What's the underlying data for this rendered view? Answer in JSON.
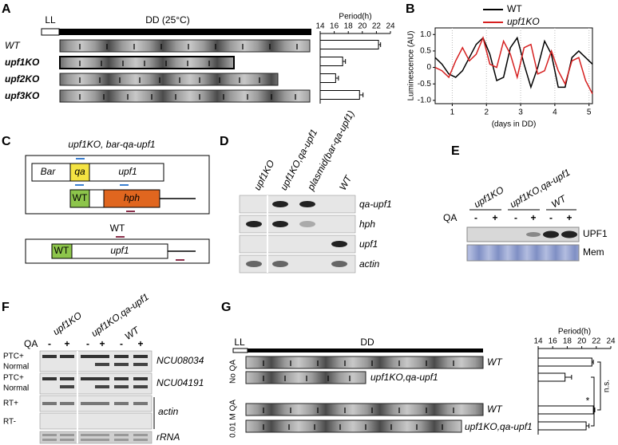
{
  "panel_labels": [
    "A",
    "B",
    "C",
    "D",
    "E",
    "F",
    "G"
  ],
  "chart_data": [
    {
      "type": "bar",
      "title": "Period(h)",
      "values": [
        22.3,
        17.2,
        16.2,
        19.6
      ],
      "errors": [
        0.3,
        0.4,
        0.4,
        0.5
      ],
      "color": "#ffffff",
      "xlim": [
        14,
        24
      ],
      "xticks": [
        14,
        16,
        18,
        20,
        22,
        24
      ]
    },
    {
      "type": "line",
      "ylabel": "Luminescence (AU)",
      "xlabel": "(days in DD)",
      "legend": "top",
      "x": [
        0.5,
        0.7,
        0.9,
        1.1,
        1.3,
        1.5,
        1.7,
        1.9,
        2.1,
        2.3,
        2.5,
        2.7,
        2.9,
        3.1,
        3.3,
        3.5,
        3.7,
        3.9,
        4.1,
        4.3,
        4.5,
        4.7,
        4.9,
        5.1
      ],
      "series": [
        {
          "name": "WT",
          "color": "#000000",
          "values": [
            0.3,
            0.1,
            -0.2,
            -0.3,
            -0.1,
            0.3,
            0.7,
            0.9,
            0.4,
            -0.4,
            -0.3,
            0.6,
            0.9,
            0.1,
            -0.6,
            0.0,
            0.8,
            0.4,
            -0.6,
            -0.6,
            0.3,
            0.5,
            0.3,
            0.1
          ]
        },
        {
          "name": "upf1KO",
          "color": "#d62020",
          "values": [
            0.0,
            -0.1,
            -0.3,
            0.2,
            0.6,
            0.2,
            0.4,
            0.9,
            0.1,
            0.0,
            0.8,
            0.4,
            -0.3,
            0.6,
            0.7,
            -0.2,
            -0.1,
            0.5,
            -0.1,
            -0.5,
            0.2,
            0.3,
            -0.4,
            -0.8
          ]
        }
      ],
      "xlim": [
        0.5,
        5.1
      ],
      "xticks": [
        1,
        2,
        3,
        4,
        5
      ],
      "ylim": [
        -1.1,
        1.2
      ],
      "yticks": [
        {
          "value": 1,
          "label": "1.0"
        },
        0.5,
        0,
        -0.5,
        {
          "value": -1,
          "label": "-1.0"
        }
      ],
      "grid": true
    },
    {
      "type": "bar",
      "title": "Period(h)",
      "values": [
        21.4,
        17.7,
        21.6,
        20.6
      ],
      "errors": [
        0.2,
        0.9,
        0.2,
        0.4
      ],
      "color": "#ffffff",
      "xlim": [
        14,
        24
      ],
      "xticks": [
        14,
        16,
        18,
        20,
        22,
        24
      ],
      "significance": [
        "n.s.",
        "*"
      ]
    }
  ],
  "panel_a": {
    "ll": "LL",
    "dd": "DD (25°C)",
    "tube_labels": [
      "WT",
      "upf1KO",
      "upf2KO",
      "upf3KO"
    ]
  },
  "panel_c": {
    "title": "upf1KO, bar-qa-upf1",
    "construct": [
      "Bar",
      "qa",
      "upf1",
      "WT",
      "hph"
    ],
    "wt_title": "WT",
    "wt_construct": [
      "WT",
      "upf1"
    ]
  },
  "panel_d": {
    "lanes": [
      "upf1KO",
      "upf1KO,qa-upf1",
      "plasmid(bar-qa-upf1)",
      "WT"
    ],
    "rows": [
      "qa-upf1",
      "hph",
      "upf1",
      "actin"
    ]
  },
  "panel_e": {
    "lanes": [
      "upf1KO",
      "upf1KO,qa-upf1",
      "WT"
    ],
    "treatment": "QA",
    "signs": [
      "-",
      "+",
      "-",
      "+",
      "-",
      "+"
    ],
    "rows": [
      "UPF1",
      "Mem"
    ]
  },
  "panel_f": {
    "lanes": [
      "upf1KO",
      "upf1KO,qa-upf1",
      "WT"
    ],
    "treatment": "QA",
    "signs": [
      "-",
      "+",
      "-",
      "+",
      "-",
      "+"
    ],
    "left_labels": [
      "PTC+",
      "Normal",
      "PTC+",
      "Normal",
      "RT+",
      "RT-"
    ],
    "right_labels": [
      "NCU08034",
      "NCU04191",
      "actin",
      "rRNA"
    ]
  },
  "panel_g": {
    "ll": "LL",
    "dd": "DD",
    "conditions": [
      "No QA",
      "0.01 M QA"
    ],
    "tube_labels": [
      "WT",
      "upf1KO,qa-upf1",
      "WT",
      "upf1KO,qa-upf1"
    ]
  }
}
